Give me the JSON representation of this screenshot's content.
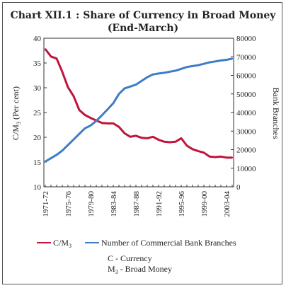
{
  "chart_data": {
    "type": "line",
    "title": "Chart XII.1 : Share of Currency in Broad Money",
    "subtitle": "(End-March)",
    "ylabel_left": "C/M3 (Per cent)",
    "ylabel_right": "Bank Branches",
    "ylim_left": [
      10,
      40
    ],
    "ylim_right": [
      0,
      80000
    ],
    "yticks_left": [
      "10",
      "15",
      "20",
      "25",
      "30",
      "35",
      "40"
    ],
    "yticks_right": [
      "0",
      "10000",
      "20000",
      "30000",
      "40000",
      "50000",
      "60000",
      "70000",
      "80000"
    ],
    "xtick_labels": [
      "1971-72",
      "1975-76",
      "1979-80",
      "1983-84",
      "1987-88",
      "1991-92",
      "1995-96",
      "1999-00",
      "2003-04"
    ],
    "categories": [
      "1971-72",
      "1972-73",
      "1973-74",
      "1974-75",
      "1975-76",
      "1976-77",
      "1977-78",
      "1978-79",
      "1979-80",
      "1980-81",
      "1981-82",
      "1982-83",
      "1983-84",
      "1984-85",
      "1985-86",
      "1986-87",
      "1987-88",
      "1988-89",
      "1989-90",
      "1990-91",
      "1991-92",
      "1992-93",
      "1993-94",
      "1994-95",
      "1995-96",
      "1996-97",
      "1997-98",
      "1998-99",
      "1999-00",
      "2000-01",
      "2001-02",
      "2002-03",
      "2003-04",
      "2004-05"
    ],
    "series": [
      {
        "name": "C/M3",
        "axis": "left",
        "color": "#c0143c",
        "values": [
          37.8,
          36.3,
          35.9,
          33.2,
          30.1,
          28.3,
          25.5,
          24.5,
          23.9,
          23.4,
          22.9,
          22.8,
          22.8,
          22.1,
          20.8,
          20.1,
          20.3,
          19.9,
          19.8,
          20.1,
          19.5,
          19.1,
          19.0,
          19.1,
          19.8,
          18.3,
          17.6,
          17.2,
          16.9,
          16.1,
          16.0,
          16.1,
          15.9,
          15.9
        ]
      },
      {
        "name": "Number of Commercial Bank Branches",
        "axis": "right",
        "color": "#3d7cc9",
        "values": [
          13600,
          15400,
          17200,
          19500,
          22500,
          25500,
          28500,
          31500,
          33000,
          35500,
          38500,
          41700,
          45000,
          50000,
          53000,
          54000,
          55000,
          57000,
          59000,
          60500,
          61000,
          61400,
          62000,
          62500,
          63500,
          64500,
          65000,
          65500,
          66200,
          67000,
          67500,
          68000,
          68400,
          69000
        ]
      }
    ]
  },
  "notes": [
    "C - Currency",
    "M3 - Broad Money"
  ],
  "colors": {
    "c_m3": "#c0143c",
    "branches": "#3d7cc9"
  }
}
